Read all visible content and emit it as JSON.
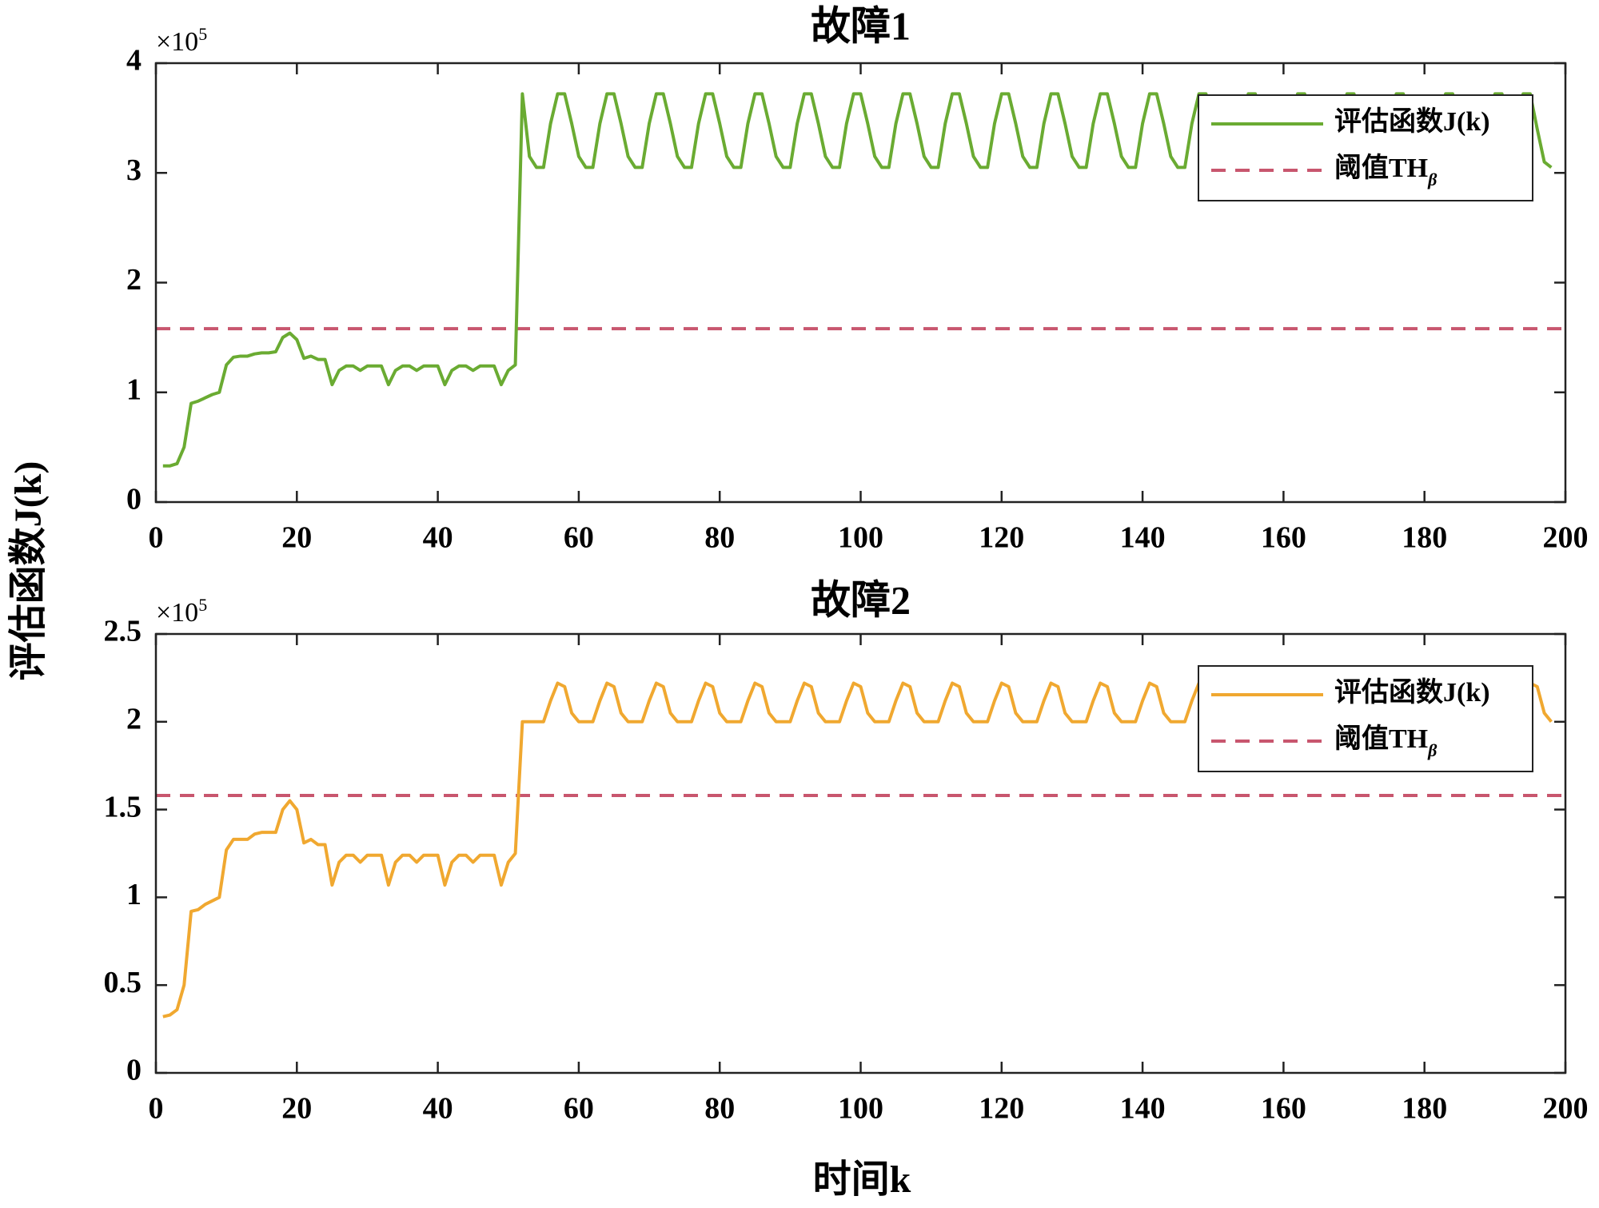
{
  "figure_labels": {
    "x": "时间k",
    "y": "评估函数J(k)"
  },
  "chart_data": [
    {
      "type": "line",
      "title": "故障1",
      "multiplier": "×10",
      "multiplier_exponent": "5",
      "xlim": [
        0,
        200
      ],
      "xticks": [
        0,
        20,
        40,
        60,
        80,
        100,
        120,
        140,
        160,
        180,
        200
      ],
      "ylim": [
        0,
        4
      ],
      "yticks": [
        0,
        1,
        2,
        3,
        4
      ],
      "series": [
        {
          "name": "评估函数J(k)",
          "color": "#6aab32",
          "x": [
            1,
            2,
            3,
            4,
            5,
            6,
            7,
            8,
            9,
            10,
            11,
            12,
            13,
            14,
            15,
            16,
            17,
            18,
            19,
            20,
            21,
            22,
            23,
            24,
            25,
            26,
            27,
            28,
            29,
            30,
            31,
            32,
            33,
            34,
            35,
            36,
            37,
            38,
            39,
            40,
            41,
            42,
            43,
            44,
            45,
            46,
            47,
            48,
            49,
            50,
            51,
            52,
            53,
            54,
            55,
            56,
            57,
            58,
            59,
            60,
            61,
            62,
            63,
            64,
            65,
            66,
            67,
            68,
            69,
            70,
            71,
            72,
            73,
            74,
            75,
            76,
            77,
            78,
            79,
            80,
            81,
            82,
            83,
            84,
            85,
            86,
            87,
            88,
            89,
            90,
            91,
            92,
            93,
            94,
            95,
            96,
            97,
            98,
            99,
            100,
            101,
            102,
            103,
            104,
            105,
            106,
            107,
            108,
            109,
            110,
            111,
            112,
            113,
            114,
            115,
            116,
            117,
            118,
            119,
            120,
            121,
            122,
            123,
            124,
            125,
            126,
            127,
            128,
            129,
            130,
            131,
            132,
            133,
            134,
            135,
            136,
            137,
            138,
            139,
            140,
            141,
            142,
            143,
            144,
            145,
            146,
            147,
            148,
            149,
            150,
            151,
            152,
            153,
            154,
            155,
            156,
            157,
            158,
            159,
            160,
            161,
            162,
            163,
            164,
            165,
            166,
            167,
            168,
            169,
            170,
            171,
            172,
            173,
            174,
            175,
            176,
            177,
            178,
            179,
            180,
            181,
            182,
            183,
            184,
            185,
            186,
            187,
            188,
            189,
            190,
            191,
            192,
            193,
            194,
            195,
            196,
            197,
            198
          ],
          "values": [
            0.33,
            0.33,
            0.35,
            0.5,
            0.9,
            0.92,
            0.95,
            0.98,
            1.0,
            1.25,
            1.32,
            1.33,
            1.33,
            1.35,
            1.36,
            1.36,
            1.37,
            1.5,
            1.54,
            1.48,
            1.31,
            1.33,
            1.3,
            1.3,
            1.07,
            1.2,
            1.24,
            1.24,
            1.2,
            1.24,
            1.24,
            1.24,
            1.07,
            1.2,
            1.24,
            1.24,
            1.2,
            1.24,
            1.24,
            1.24,
            1.07,
            1.2,
            1.24,
            1.24,
            1.2,
            1.24,
            1.24,
            1.24,
            1.07,
            1.2,
            1.25,
            3.72,
            3.15,
            3.05,
            3.05,
            3.45,
            3.72,
            3.72,
            3.45,
            3.15,
            3.05,
            3.05,
            3.45,
            3.72,
            3.72,
            3.45,
            3.15,
            3.05,
            3.05,
            3.45,
            3.72,
            3.72,
            3.45,
            3.15,
            3.05,
            3.05,
            3.45,
            3.72,
            3.72,
            3.45,
            3.15,
            3.05,
            3.05,
            3.45,
            3.72,
            3.72,
            3.45,
            3.15,
            3.05,
            3.05,
            3.45,
            3.72,
            3.72,
            3.45,
            3.15,
            3.05,
            3.05,
            3.45,
            3.72,
            3.72,
            3.45,
            3.15,
            3.05,
            3.05,
            3.45,
            3.72,
            3.72,
            3.45,
            3.15,
            3.05,
            3.05,
            3.45,
            3.72,
            3.72,
            3.45,
            3.15,
            3.05,
            3.05,
            3.45,
            3.72,
            3.72,
            3.45,
            3.15,
            3.05,
            3.05,
            3.45,
            3.72,
            3.72,
            3.45,
            3.15,
            3.05,
            3.05,
            3.45,
            3.72,
            3.72,
            3.45,
            3.15,
            3.05,
            3.05,
            3.45,
            3.72,
            3.72,
            3.45,
            3.15,
            3.05,
            3.05,
            3.45,
            3.72,
            3.72,
            3.45,
            3.15,
            3.05,
            3.05,
            3.45,
            3.72,
            3.72,
            3.45,
            3.15,
            3.05,
            3.05,
            3.45,
            3.72,
            3.72,
            3.45,
            3.15,
            3.05,
            3.05,
            3.45,
            3.72,
            3.72,
            3.45,
            3.15,
            3.05,
            3.05,
            3.45,
            3.72,
            3.72,
            3.45,
            3.15,
            3.05,
            3.05,
            3.45,
            3.72,
            3.72,
            3.45,
            3.15,
            3.05,
            3.05,
            3.45,
            3.72,
            3.72,
            3.45,
            3.45,
            3.72,
            3.72,
            3.4,
            3.1,
            3.05
          ]
        }
      ],
      "threshold": {
        "name": "阈值TH",
        "name_subscript": "β",
        "color": "#c8566e",
        "value": 1.58,
        "dashed": true
      },
      "legend": "upper right"
    },
    {
      "type": "line",
      "title": "故障2",
      "multiplier": "×10",
      "multiplier_exponent": "5",
      "xlim": [
        0,
        200
      ],
      "xticks": [
        0,
        20,
        40,
        60,
        80,
        100,
        120,
        140,
        160,
        180,
        200
      ],
      "ylim": [
        0,
        2.5
      ],
      "yticks": [
        0,
        0.5,
        1,
        1.5,
        2,
        2.5
      ],
      "series": [
        {
          "name": "评估函数J(k)",
          "color": "#f0a830",
          "x": [
            1,
            2,
            3,
            4,
            5,
            6,
            7,
            8,
            9,
            10,
            11,
            12,
            13,
            14,
            15,
            16,
            17,
            18,
            19,
            20,
            21,
            22,
            23,
            24,
            25,
            26,
            27,
            28,
            29,
            30,
            31,
            32,
            33,
            34,
            35,
            36,
            37,
            38,
            39,
            40,
            41,
            42,
            43,
            44,
            45,
            46,
            47,
            48,
            49,
            50,
            51,
            52,
            53,
            54,
            55,
            56,
            57,
            58,
            59,
            60,
            61,
            62,
            63,
            64,
            65,
            66,
            67,
            68,
            69,
            70,
            71,
            72,
            73,
            74,
            75,
            76,
            77,
            78,
            79,
            80,
            81,
            82,
            83,
            84,
            85,
            86,
            87,
            88,
            89,
            90,
            91,
            92,
            93,
            94,
            95,
            96,
            97,
            98,
            99,
            100,
            101,
            102,
            103,
            104,
            105,
            106,
            107,
            108,
            109,
            110,
            111,
            112,
            113,
            114,
            115,
            116,
            117,
            118,
            119,
            120,
            121,
            122,
            123,
            124,
            125,
            126,
            127,
            128,
            129,
            130,
            131,
            132,
            133,
            134,
            135,
            136,
            137,
            138,
            139,
            140,
            141,
            142,
            143,
            144,
            145,
            146,
            147,
            148,
            149,
            150,
            151,
            152,
            153,
            154,
            155,
            156,
            157,
            158,
            159,
            160,
            161,
            162,
            163,
            164,
            165,
            166,
            167,
            168,
            169,
            170,
            171,
            172,
            173,
            174,
            175,
            176,
            177,
            178,
            179,
            180,
            181,
            182,
            183,
            184,
            185,
            186,
            187,
            188,
            189,
            190,
            191,
            192,
            193,
            194,
            195,
            196,
            197,
            198
          ],
          "values": [
            0.32,
            0.33,
            0.36,
            0.5,
            0.92,
            0.93,
            0.96,
            0.98,
            1.0,
            1.27,
            1.33,
            1.33,
            1.33,
            1.36,
            1.37,
            1.37,
            1.37,
            1.5,
            1.55,
            1.5,
            1.31,
            1.33,
            1.3,
            1.3,
            1.07,
            1.2,
            1.24,
            1.24,
            1.2,
            1.24,
            1.24,
            1.24,
            1.07,
            1.2,
            1.24,
            1.24,
            1.2,
            1.24,
            1.24,
            1.24,
            1.07,
            1.2,
            1.24,
            1.24,
            1.2,
            1.24,
            1.24,
            1.24,
            1.07,
            1.2,
            1.25,
            2.0,
            2.0,
            2.0,
            2.0,
            2.12,
            2.22,
            2.2,
            2.05,
            2.0,
            2.0,
            2.0,
            2.12,
            2.22,
            2.2,
            2.05,
            2.0,
            2.0,
            2.0,
            2.12,
            2.22,
            2.2,
            2.05,
            2.0,
            2.0,
            2.0,
            2.12,
            2.22,
            2.2,
            2.05,
            2.0,
            2.0,
            2.0,
            2.12,
            2.22,
            2.2,
            2.05,
            2.0,
            2.0,
            2.0,
            2.12,
            2.22,
            2.2,
            2.05,
            2.0,
            2.0,
            2.0,
            2.12,
            2.22,
            2.2,
            2.05,
            2.0,
            2.0,
            2.0,
            2.12,
            2.22,
            2.2,
            2.05,
            2.0,
            2.0,
            2.0,
            2.12,
            2.22,
            2.2,
            2.05,
            2.0,
            2.0,
            2.0,
            2.12,
            2.22,
            2.2,
            2.05,
            2.0,
            2.0,
            2.0,
            2.12,
            2.22,
            2.2,
            2.05,
            2.0,
            2.0,
            2.0,
            2.12,
            2.22,
            2.2,
            2.05,
            2.0,
            2.0,
            2.0,
            2.12,
            2.22,
            2.2,
            2.05,
            2.0,
            2.0,
            2.0,
            2.12,
            2.22,
            2.2,
            2.05,
            2.0,
            2.0,
            2.0,
            2.12,
            2.22,
            2.2,
            2.05,
            2.0,
            2.0,
            2.0,
            2.12,
            2.22,
            2.2,
            2.05,
            2.0,
            2.0,
            2.0,
            2.12,
            2.22,
            2.2,
            2.05,
            2.0,
            2.0,
            2.0,
            2.12,
            2.22,
            2.2,
            2.05,
            2.0,
            2.0,
            2.0,
            2.12,
            2.22,
            2.2,
            2.05,
            2.0,
            2.0,
            2.0,
            2.12,
            2.22,
            2.2,
            2.05,
            2.0,
            2.12,
            2.22,
            2.2,
            2.05,
            2.0
          ]
        }
      ],
      "threshold": {
        "name": "阈值TH",
        "name_subscript": "β",
        "color": "#c8566e",
        "value": 1.58,
        "dashed": true
      },
      "legend": "upper right"
    }
  ]
}
